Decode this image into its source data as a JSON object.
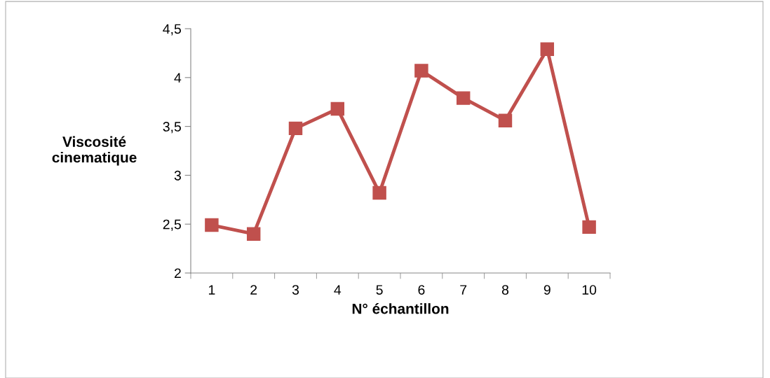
{
  "chart_data": {
    "type": "line",
    "xlabel": "N° échantillon",
    "ylabel": "Viscosité\ncinematique",
    "categories": [
      "1",
      "2",
      "3",
      "4",
      "5",
      "6",
      "7",
      "8",
      "9",
      "10"
    ],
    "series": [
      {
        "color": "#c0504d",
        "values": [
          2.49,
          2.4,
          3.48,
          3.68,
          2.82,
          4.07,
          3.79,
          3.56,
          4.29,
          2.47
        ]
      }
    ],
    "ylim": [
      2,
      4.5
    ],
    "yticks": [
      2,
      {
        "value": 2.5,
        "label": "2,5"
      },
      3,
      {
        "value": 3.5,
        "label": "3,5"
      },
      4,
      {
        "value": 4.5,
        "label": "4,5"
      }
    ],
    "marker": "square",
    "line_style": "solid",
    "grid": false,
    "legend": false
  }
}
